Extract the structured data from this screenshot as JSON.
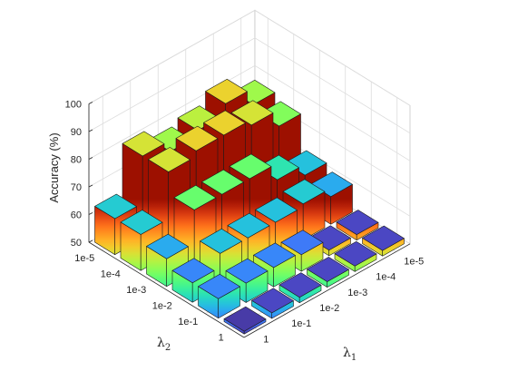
{
  "chart_data": {
    "type": "bar3d",
    "title": "",
    "zlabel": "Accuracy (%)",
    "xlabel": {
      "base": "λ",
      "sub": "1"
    },
    "ylabel": {
      "base": "λ",
      "sub": "2"
    },
    "zlim": [
      50,
      100
    ],
    "zticks": [
      50,
      60,
      70,
      80,
      90,
      100
    ],
    "lambda1_ticks": [
      "1",
      "1e-1",
      "1e-2",
      "1e-3",
      "1e-4",
      "1e-5"
    ],
    "lambda2_ticks": [
      "1e-5",
      "1e-4",
      "1e-3",
      "1e-2",
      "1e-1",
      "1"
    ],
    "grid": true,
    "colormap": "turbo",
    "values_note_rows_lambda2_cols_lambda1": [
      [
        63,
        80,
        76,
        78,
        82,
        76
      ],
      [
        63,
        80,
        82,
        82,
        80,
        74
      ],
      [
        60,
        72,
        72,
        72,
        66,
        62
      ],
      [
        57,
        62,
        62,
        62,
        63,
        60
      ],
      [
        57,
        57,
        57,
        56,
        52,
        52
      ],
      [
        51,
        52,
        52,
        52,
        52,
        52
      ]
    ]
  }
}
